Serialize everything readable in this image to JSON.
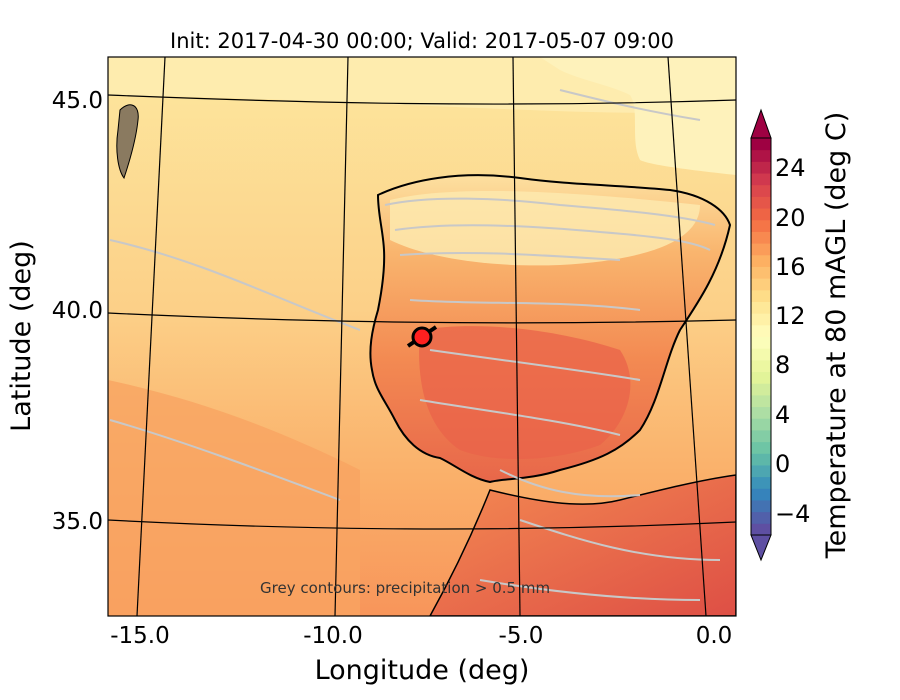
{
  "title": "Init: 2017-04-30 00:00; Valid: 2017-05-07 09:00",
  "xlabel": "Longitude (deg)",
  "ylabel": "Latitude (deg)",
  "colorbar_label": "Temperature at 80 mAGL (deg C)",
  "annotation": "Grey contours: precipitation > 0.5 mm",
  "x_ticks": [
    "-15.0",
    "-10.0",
    "-5.0",
    "0.0"
  ],
  "y_ticks": [
    "45.0",
    "40.0",
    "35.0"
  ],
  "colorbar_ticks": [
    "24",
    "20",
    "16",
    "12",
    "8",
    "4",
    "0",
    "−4"
  ],
  "map_extent": {
    "lon": [
      -15.8,
      0.2
    ],
    "lat": [
      32.8,
      46.2
    ]
  },
  "colorbar_range": [
    -6,
    28
  ],
  "colorbar_extend": "both",
  "marker": {
    "lon": -7.7,
    "lat": 39.4,
    "color": "#ff2020",
    "label": ""
  },
  "colors": {
    "ocean_north": "#fde39a",
    "ocean_south": "#f9a05e",
    "land": "#f48b52",
    "land_warm": "#e8624a",
    "north_coast": "#fff3b8",
    "precip_contour": "#c8c8c8"
  }
}
